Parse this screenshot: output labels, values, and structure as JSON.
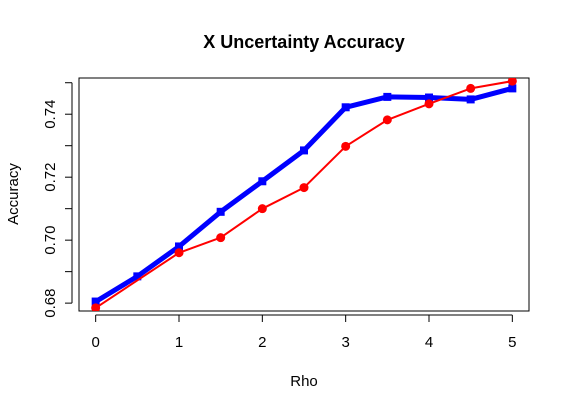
{
  "chart_data": {
    "type": "line",
    "title": "X Uncertainty Accuracy",
    "xlabel": "Rho",
    "ylabel": "Accuracy",
    "xlim": [
      -0.2,
      5.2
    ],
    "ylim": [
      0.6775,
      0.7515
    ],
    "x_ticks": [
      0,
      1,
      2,
      3,
      4,
      5
    ],
    "x_tick_labels": [
      "0",
      "1",
      "2",
      "3",
      "4",
      "5"
    ],
    "y_ticks": [
      0.68,
      0.7,
      0.72,
      0.74
    ],
    "y_tick_labels": [
      "0.68",
      "0.70",
      "0.72",
      "0.74"
    ],
    "y_minor_ticks": [
      0.69,
      0.71,
      0.73,
      0.75
    ],
    "x": [
      0,
      0.5,
      1,
      1.5,
      2,
      2.5,
      3,
      3.5,
      4,
      4.5,
      5
    ],
    "series": [
      {
        "color": "#0000ff",
        "marker": "square",
        "line_style": "thick",
        "values": [
          0.6805,
          0.6885,
          0.698,
          0.709,
          0.7187,
          0.7285,
          0.7422,
          0.7455,
          0.7453,
          0.7447,
          0.7482
        ]
      },
      {
        "color": "#ff0000",
        "marker": "circle",
        "line_style": "thin",
        "values": [
          0.6785,
          null,
          0.696,
          0.7008,
          0.71,
          0.7167,
          0.7298,
          0.7382,
          0.7433,
          0.7482,
          0.7505
        ]
      }
    ]
  }
}
